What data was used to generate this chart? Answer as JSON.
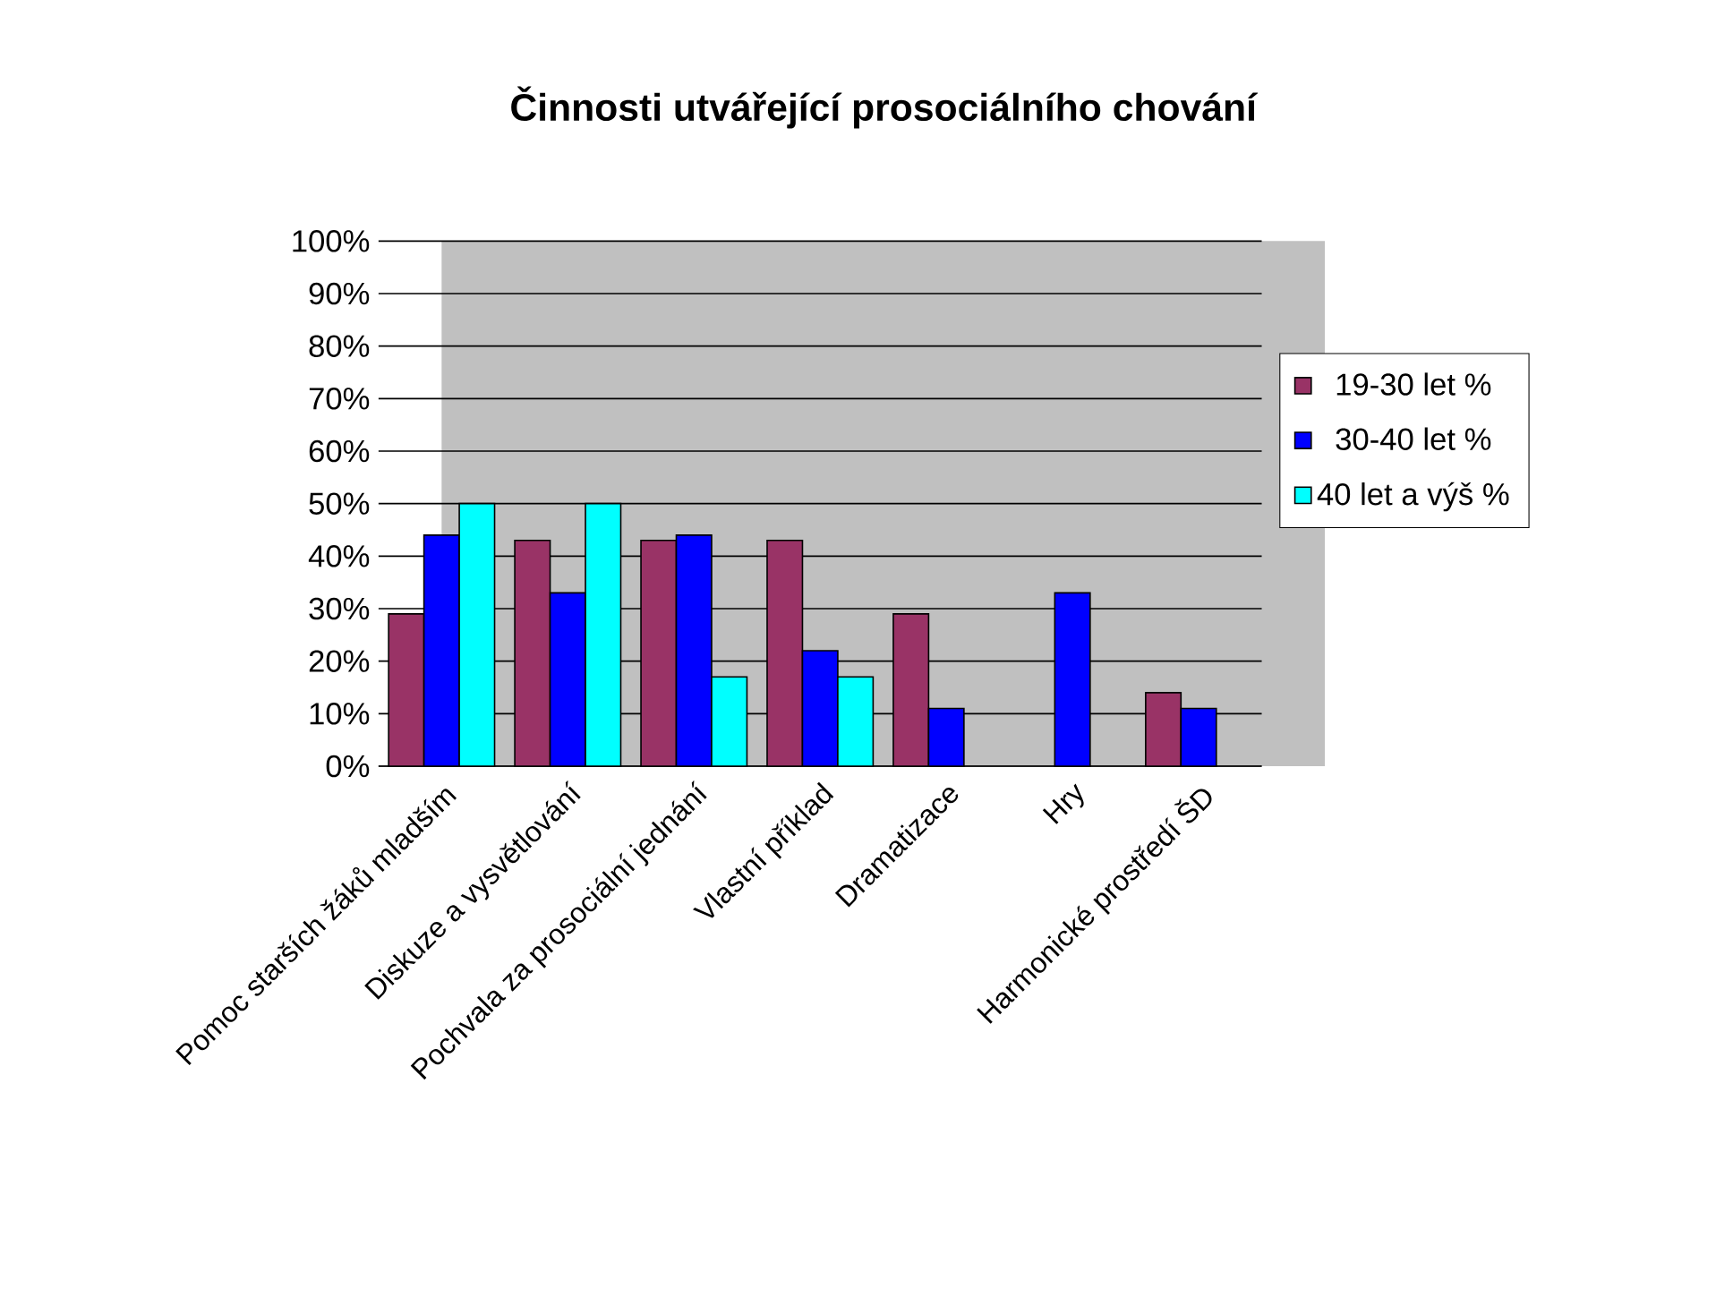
{
  "chart_data": {
    "type": "bar",
    "title": "Činnosti utvářející prosociálního chování",
    "categories": [
      "Pomoc starších žáků mladším",
      "Diskuze a vysvětlování",
      "Pochvala za prosociální jednání",
      "Vlastní příklad",
      "Dramatizace",
      "Hry",
      "Harmonické prostředí ŠD"
    ],
    "series": [
      {
        "name": "19-30 let %",
        "color": "#993366",
        "values": [
          29,
          43,
          43,
          43,
          29,
          null,
          14
        ]
      },
      {
        "name": "30-40 let %",
        "color": "#0000ff",
        "values": [
          44,
          33,
          44,
          22,
          11,
          33,
          11
        ]
      },
      {
        "name": "40 let a výš %",
        "color": "#00ffff",
        "values": [
          50,
          50,
          17,
          17,
          null,
          null,
          null
        ]
      }
    ],
    "ylim": [
      0,
      100
    ],
    "yticks": [
      {
        "value": 0,
        "label": "0%"
      },
      {
        "value": 10,
        "label": "10%"
      },
      {
        "value": 20,
        "label": "20%"
      },
      {
        "value": 30,
        "label": "30%"
      },
      {
        "value": 40,
        "label": "40%"
      },
      {
        "value": 50,
        "label": "50%"
      },
      {
        "value": 60,
        "label": "60%"
      },
      {
        "value": 70,
        "label": "70%"
      },
      {
        "value": 80,
        "label": "80%"
      },
      {
        "value": 90,
        "label": "90%"
      },
      {
        "value": 100,
        "label": "100%"
      }
    ],
    "grid": "y",
    "legend": "right"
  }
}
